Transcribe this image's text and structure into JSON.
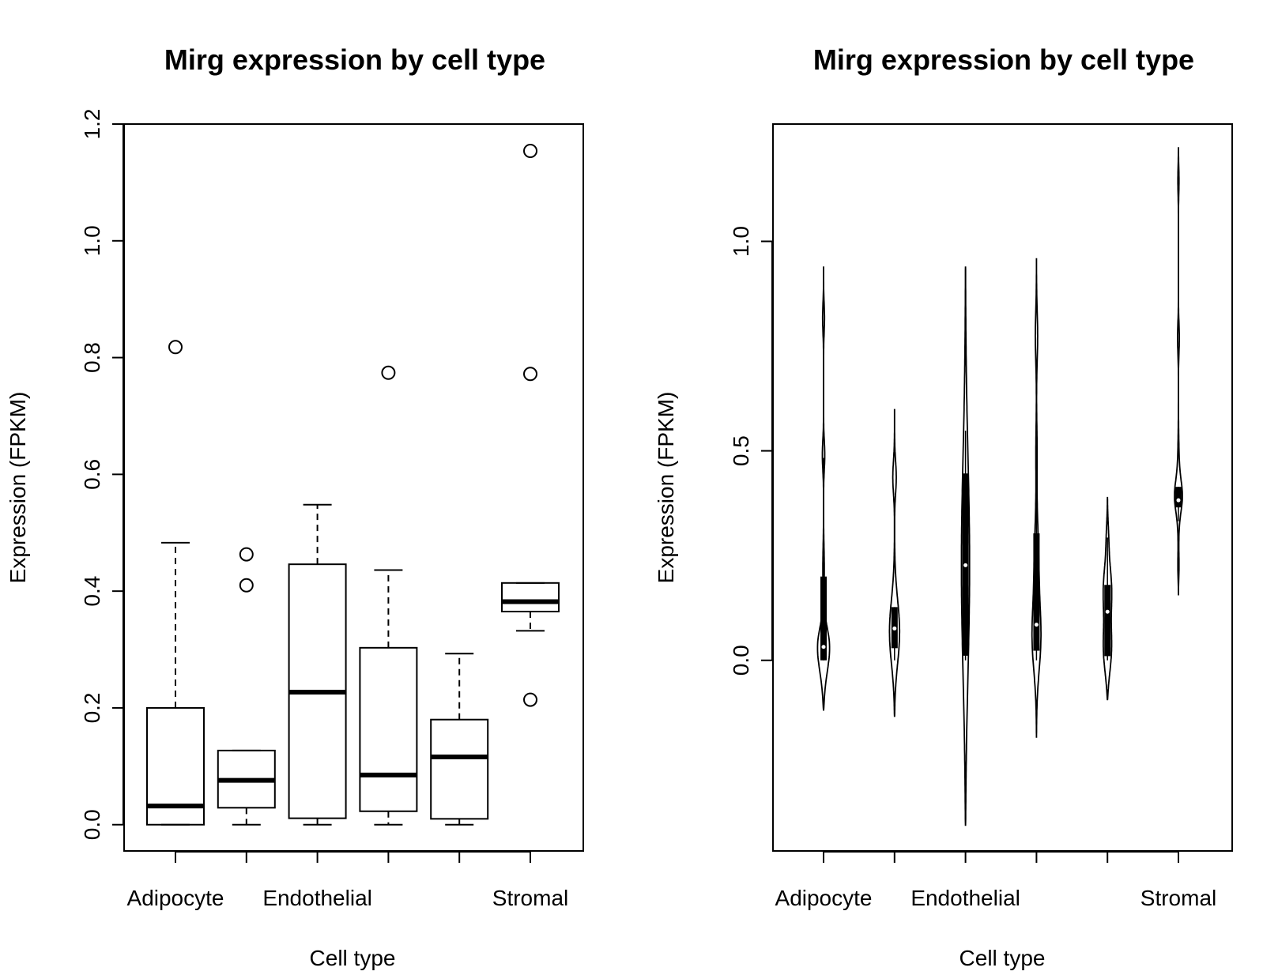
{
  "chart_data": [
    {
      "type": "box",
      "title": "Mirg expression by cell type",
      "xlabel": "Cell type",
      "ylabel": "Expression (FPKM)",
      "ylim": [
        -0.045,
        1.2
      ],
      "yticks": [
        "0.0",
        "0.2",
        "0.4",
        "0.6",
        "0.8",
        "1.0",
        "1.2"
      ],
      "categories": [
        "Adipocyte",
        "",
        "Endothelial",
        "",
        "",
        "Stromal"
      ],
      "boxes": [
        {
          "whisker_low": 0.0,
          "q1": 0.0,
          "median": 0.032,
          "q3": 0.2,
          "whisker_high": 0.483,
          "outliers": [
            0.818
          ]
        },
        {
          "whisker_low": 0.0,
          "q1": 0.029,
          "median": 0.076,
          "q3": 0.127,
          "whisker_high": 0.127,
          "outliers": [
            0.463,
            0.41
          ]
        },
        {
          "whisker_low": 0.0,
          "q1": 0.011,
          "median": 0.227,
          "q3": 0.446,
          "whisker_high": 0.548,
          "outliers": []
        },
        {
          "whisker_low": 0.0,
          "q1": 0.023,
          "median": 0.085,
          "q3": 0.303,
          "whisker_high": 0.436,
          "outliers": [
            0.774
          ]
        },
        {
          "whisker_low": 0.0,
          "q1": 0.01,
          "median": 0.116,
          "q3": 0.18,
          "whisker_high": 0.293,
          "outliers": []
        },
        {
          "whisker_low": 0.332,
          "q1": 0.365,
          "median": 0.382,
          "q3": 0.414,
          "whisker_high": 0.414,
          "outliers": [
            1.154,
            0.772,
            0.214
          ]
        }
      ]
    },
    {
      "type": "violin",
      "title": "Mirg expression by cell type",
      "xlabel": "Cell type",
      "ylabel": "Expression (FPKM)",
      "ylim": [
        -0.455,
        1.28
      ],
      "yticks": [
        "0.0",
        "0.5",
        "1.0"
      ],
      "categories": [
        "Adipocyte",
        "",
        "Endothelial",
        "",
        "",
        "Stromal"
      ],
      "violins": [
        {
          "range": [
            -0.12,
            0.94
          ],
          "q1": 0.0,
          "median": 0.032,
          "q3": 0.2,
          "whisker_low": 0.0,
          "whisker_high": 0.483,
          "bumps": [
            {
              "center": 0.0,
              "width": 0.075,
              "sd": 0.06
            },
            {
              "center": 0.04,
              "width": 0.045,
              "sd": 0.04
            },
            {
              "center": 0.82,
              "width": 0.018,
              "sd": 0.035
            },
            {
              "center": 0.49,
              "width": 0.016,
              "sd": 0.035
            },
            {
              "center": 0.22,
              "width": 0.01,
              "sd": 0.05
            }
          ]
        },
        {
          "range": [
            -0.135,
            0.6
          ],
          "q1": 0.029,
          "median": 0.076,
          "q3": 0.127,
          "whisker_low": 0.0,
          "whisker_high": 0.127,
          "bumps": [
            {
              "center": 0.06,
              "width": 0.075,
              "sd": 0.08
            },
            {
              "center": 0.44,
              "width": 0.027,
              "sd": 0.04
            }
          ]
        },
        {
          "range": [
            -0.395,
            0.94
          ],
          "q1": 0.011,
          "median": 0.227,
          "q3": 0.446,
          "whisker_low": 0.0,
          "whisker_high": 0.548,
          "bumps": [
            {
              "center": 0.22,
              "width": 0.055,
              "sd": 0.28
            }
          ]
        },
        {
          "range": [
            -0.185,
            0.96
          ],
          "q1": 0.023,
          "median": 0.085,
          "q3": 0.303,
          "whisker_low": 0.0,
          "whisker_high": 0.436,
          "bumps": [
            {
              "center": 0.04,
              "width": 0.065,
              "sd": 0.08
            },
            {
              "center": 0.22,
              "width": 0.03,
              "sd": 0.1
            },
            {
              "center": 0.78,
              "width": 0.02,
              "sd": 0.06
            },
            {
              "center": 0.5,
              "width": 0.008,
              "sd": 0.06
            }
          ]
        },
        {
          "range": [
            -0.095,
            0.39
          ],
          "q1": 0.01,
          "median": 0.116,
          "q3": 0.18,
          "whisker_low": 0.0,
          "whisker_high": 0.293,
          "bumps": [
            {
              "center": 0.02,
              "width": 0.06,
              "sd": 0.06
            },
            {
              "center": 0.17,
              "width": 0.055,
              "sd": 0.06
            },
            {
              "center": 0.3,
              "width": 0.015,
              "sd": 0.04
            }
          ]
        },
        {
          "range": [
            0.155,
            1.225
          ],
          "q1": 0.365,
          "median": 0.382,
          "q3": 0.414,
          "whisker_low": 0.332,
          "whisker_high": 0.414,
          "bumps": [
            {
              "center": 0.39,
              "width": 0.045,
              "sd": 0.035
            },
            {
              "center": 0.4,
              "width": 0.018,
              "sd": 0.08
            },
            {
              "center": 0.22,
              "width": 0.012,
              "sd": 0.03
            },
            {
              "center": 0.77,
              "width": 0.012,
              "sd": 0.035
            },
            {
              "center": 1.15,
              "width": 0.012,
              "sd": 0.035
            }
          ]
        }
      ]
    }
  ]
}
